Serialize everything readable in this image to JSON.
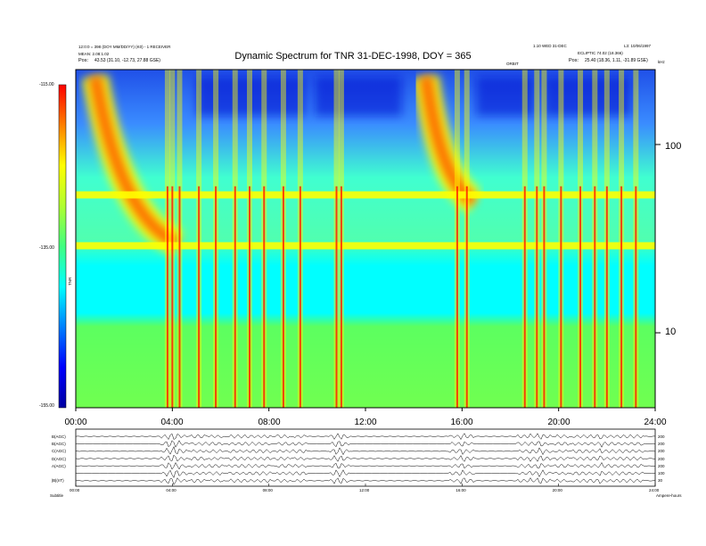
{
  "header": {
    "title": "Dynamic Spectrum for TNR 31-DEC-1998, DOY = 365",
    "top_left_line1": "12:0:0 = 398 (DOY MM/DD/YY) (K0) - 1 RECEIVER",
    "top_left_line2": "MEAN: 2.08:1.02",
    "top_left_pos_label": "Pos:",
    "top_left_pos_value": "43.53 (31.10, -12.73, 27.88 GSE)",
    "top_right_line1": "1.10 WED 31-DEC",
    "top_right_line2": "L3: 10/06/1997",
    "top_right_line3": "ECLIPTIC 74.02 (18.366)",
    "top_right_marker": "ORBIT",
    "top_right_pos_label": "Pos:",
    "top_right_pos_value": "25.40 (18.36, 1.11, -31.89 GSE)",
    "unit_label": "kHz"
  },
  "colorbar": {
    "label": "TNR",
    "tick_top": "-115.00",
    "tick_mid": "-135.00",
    "tick_bottom": "-155.00",
    "colors": [
      "#0000a0",
      "#0000ff",
      "#0080ff",
      "#00ffff",
      "#40ff80",
      "#b0ff30",
      "#ffff00",
      "#ff8000",
      "#ff0000"
    ]
  },
  "bottom_panel": {
    "channel_labels": [
      "B(AGC)",
      "B(AGC)",
      "C(AGC)",
      "D(AGC)",
      "A(AGC)",
      "",
      "|B|(nT)"
    ],
    "right_values": [
      "200",
      "200",
      "200",
      "200",
      "200",
      "100",
      "30"
    ],
    "footer_left": "Subtitle",
    "footer_right": "Ampere-hours"
  },
  "chart_data": {
    "type": "heatmap",
    "title": "Dynamic Spectrum for TNR 31-DEC-1998, DOY = 365",
    "x_ticks": [
      "00:00",
      "04:00",
      "08:00",
      "12:00",
      "16:00",
      "20:00",
      "24:00"
    ],
    "xlim": [
      0,
      24
    ],
    "y_scale": "log",
    "y_unit": "kHz",
    "y_ticks": [
      10,
      100
    ],
    "ylim": [
      4,
      250
    ],
    "colorbar_range": [
      -155,
      -115
    ],
    "colorbar_ticks": [
      -115,
      -135,
      -155
    ],
    "features": {
      "band_upper_khz": 54,
      "band_lower_khz": 29,
      "bursts": [
        {
          "start_hour": 0.8,
          "end_hour": 4.2,
          "freq_start_khz": 230,
          "freq_end_khz": 30
        },
        {
          "start_hour": 14.5,
          "end_hour": 16.5,
          "freq_start_khz": 230,
          "freq_end_khz": 50
        }
      ],
      "impulsive_hours": [
        3.8,
        4.0,
        4.3,
        5.1,
        5.8,
        6.6,
        7.2,
        7.8,
        8.6,
        9.3,
        10.8,
        11.0,
        15.8,
        16.2,
        18.6,
        19.1,
        19.4,
        20.1,
        20.9,
        21.5,
        22.0,
        22.6,
        23.2
      ]
    }
  }
}
